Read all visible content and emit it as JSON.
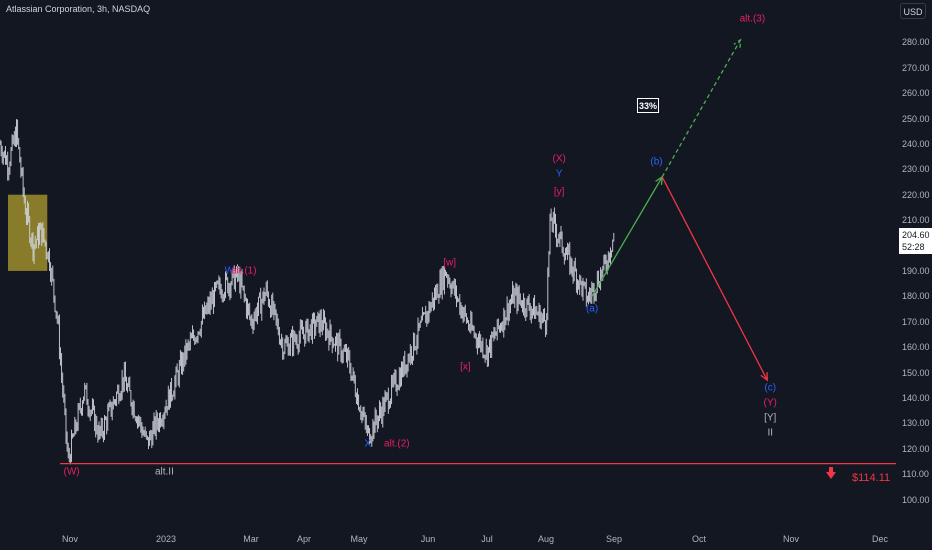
{
  "symbol_title": "Atlassian Corporation, 3h, NASDAQ",
  "currency": "USD",
  "last_price": "204.60",
  "countdown": "52:28",
  "target_label": "$114.11",
  "probability_label": "33%",
  "colors": {
    "background": "#131722",
    "candles": "#d1d4dc",
    "support": "#f23645",
    "magenta": "#e91e63",
    "blue": "#2962ff",
    "grey": "#b2b5be",
    "green": "#4caf50",
    "red": "#f23645",
    "highlight": "#9e8e2c"
  },
  "chart_data": {
    "type": "candlestick",
    "y_axis": {
      "ticks": [
        "280.00",
        "270.00",
        "260.00",
        "250.00",
        "240.00",
        "230.00",
        "220.00",
        "210.00",
        "200.00",
        "190.00",
        "180.00",
        "170.00",
        "160.00",
        "150.00",
        "140.00",
        "130.00",
        "120.00",
        "110.00",
        "100.00"
      ],
      "range": [
        95,
        292
      ]
    },
    "x_axis": {
      "ticks": [
        "Nov",
        "2023",
        "Mar",
        "Apr",
        "May",
        "Jun",
        "Jul",
        "Aug",
        "Sep",
        "Oct",
        "Nov",
        "Dec"
      ]
    },
    "price_path": [
      {
        "date": "2022-09-28",
        "price": 240
      },
      {
        "date": "2022-10-02",
        "price": 232
      },
      {
        "date": "2022-10-06",
        "price": 245
      },
      {
        "date": "2022-10-10",
        "price": 216
      },
      {
        "date": "2022-10-14",
        "price": 200
      },
      {
        "date": "2022-10-18",
        "price": 206
      },
      {
        "date": "2022-10-22",
        "price": 195
      },
      {
        "date": "2022-10-26",
        "price": 170
      },
      {
        "date": "2022-10-31",
        "price": 115
      },
      {
        "date": "2022-11-10",
        "price": 143
      },
      {
        "date": "2022-11-20",
        "price": 125
      },
      {
        "date": "2022-12-05",
        "price": 148
      },
      {
        "date": "2022-12-20",
        "price": 122
      },
      {
        "date": "2023-01-03",
        "price": 140
      },
      {
        "date": "2023-01-15",
        "price": 158
      },
      {
        "date": "2023-02-05",
        "price": 182
      },
      {
        "date": "2023-02-20",
        "price": 188
      },
      {
        "date": "2023-03-01",
        "price": 170
      },
      {
        "date": "2023-03-10",
        "price": 182
      },
      {
        "date": "2023-03-20",
        "price": 160
      },
      {
        "date": "2023-04-10",
        "price": 170
      },
      {
        "date": "2023-04-25",
        "price": 155
      },
      {
        "date": "2023-05-05",
        "price": 125
      },
      {
        "date": "2023-05-20",
        "price": 150
      },
      {
        "date": "2023-06-10",
        "price": 190
      },
      {
        "date": "2023-06-22",
        "price": 168
      },
      {
        "date": "2023-07-01",
        "price": 158
      },
      {
        "date": "2023-07-15",
        "price": 180
      },
      {
        "date": "2023-07-25",
        "price": 175
      },
      {
        "date": "2023-08-01",
        "price": 170
      },
      {
        "date": "2023-08-03",
        "price": 211
      },
      {
        "date": "2023-08-12",
        "price": 193
      },
      {
        "date": "2023-08-20",
        "price": 179
      },
      {
        "date": "2023-08-28",
        "price": 192
      },
      {
        "date": "2023-09-01",
        "price": 204.6
      }
    ],
    "support_level": 114.11,
    "highlight_zone": {
      "x_range": [
        "2022-09-28",
        "2022-10-20"
      ],
      "y_range": [
        190,
        220
      ]
    },
    "projections": [
      {
        "name": "up",
        "color": "green",
        "style": "solid",
        "from": {
          "date": "2023-08-22",
          "price": 180
        },
        "to": {
          "date": "2023-09-18",
          "price": 227
        }
      },
      {
        "name": "alt-up",
        "color": "green",
        "style": "dashed",
        "from": {
          "date": "2023-09-18",
          "price": 227
        },
        "to": {
          "date": "2023-10-15",
          "price": 281
        }
      },
      {
        "name": "down",
        "color": "red",
        "style": "solid",
        "from": {
          "date": "2023-09-18",
          "price": 227
        },
        "to": {
          "date": "2023-10-24",
          "price": 147
        }
      }
    ],
    "wave_labels": [
      {
        "text": "W",
        "color": "blue",
        "date": "2023-02-14",
        "price": 190
      },
      {
        "text": "alt.(1)",
        "color": "magenta",
        "date": "2023-02-24",
        "price": 190
      },
      {
        "text": "[w]",
        "color": "magenta",
        "date": "2023-06-12",
        "price": 193
      },
      {
        "text": "(X)",
        "color": "magenta",
        "date": "2023-08-07",
        "price": 234
      },
      {
        "text": "Y",
        "color": "blue",
        "date": "2023-08-07",
        "price": 228
      },
      {
        "text": "[y]",
        "color": "magenta",
        "date": "2023-08-07",
        "price": 221
      },
      {
        "text": "(b)",
        "color": "blue",
        "date": "2023-09-16",
        "price": 233
      },
      {
        "text": "alt.(3)",
        "color": "magenta",
        "date": "2023-10-19",
        "price": 289
      },
      {
        "text": "(a)",
        "color": "blue",
        "date": "2023-08-22",
        "price": 175
      },
      {
        "text": "[x]",
        "color": "magenta",
        "date": "2023-06-20",
        "price": 152
      },
      {
        "text": "X",
        "color": "blue",
        "date": "2023-05-05",
        "price": 122
      },
      {
        "text": "alt.(2)",
        "color": "magenta",
        "date": "2023-05-18",
        "price": 122
      },
      {
        "text": "(W)",
        "color": "magenta",
        "date": "2022-11-02",
        "price": 111
      },
      {
        "text": "alt.II",
        "color": "grey",
        "date": "2022-12-31",
        "price": 111
      },
      {
        "text": "(c)",
        "color": "blue",
        "date": "2023-10-25",
        "price": 144
      },
      {
        "text": "(Y)",
        "color": "magenta",
        "date": "2023-10-25",
        "price": 138
      },
      {
        "text": "[Y]",
        "color": "grey",
        "date": "2023-10-25",
        "price": 132
      },
      {
        "text": "II",
        "color": "grey",
        "date": "2023-10-25",
        "price": 126
      }
    ]
  }
}
